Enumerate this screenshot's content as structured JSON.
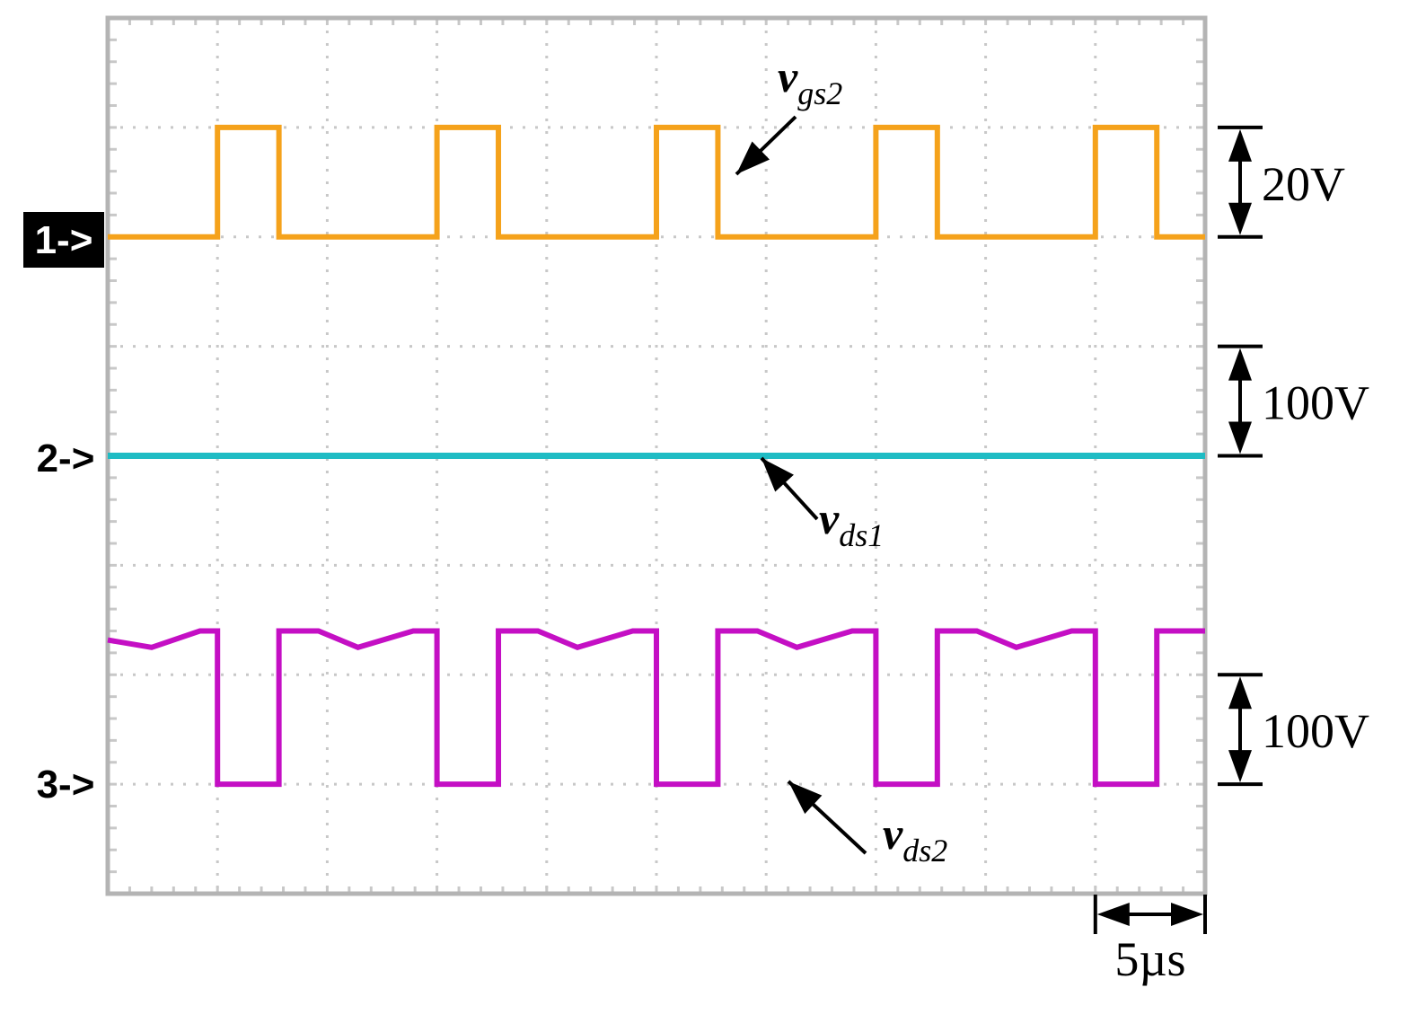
{
  "chart_data": {
    "type": "line",
    "title": "",
    "xlabel": "",
    "ylabel": "",
    "grid": true,
    "grid_divisions": {
      "x": 10,
      "y": 8
    },
    "x_unit": "µs",
    "x_range": [
      0,
      50
    ],
    "y_range_divisions": [
      0,
      8
    ],
    "colors": {
      "ch1": "#f5a21b",
      "ch2": "#1fbcc4",
      "ch3": "#c40fc4",
      "grid": "#c8c8c8",
      "frame": "#b4b4b4"
    },
    "channels": [
      {
        "marker": "1->",
        "ground_div": 6.0
      },
      {
        "marker": "2->",
        "ground_div": 4.0
      },
      {
        "marker": "3->",
        "ground_div": 1.0
      }
    ],
    "series": [
      {
        "name": "v_gs2",
        "label_main": "v",
        "label_sub": "gs2",
        "channel": 1,
        "volts_per_div": 20,
        "low_v": 0,
        "high_v": 20,
        "period_us": 10,
        "pulse_rise_us": [
          5,
          15,
          25,
          35,
          45
        ],
        "pulse_width_us": 2.8
      },
      {
        "name": "v_ds1",
        "label_main": "v",
        "label_sub": "ds1",
        "channel": 2,
        "volts_per_div": 100,
        "level_v": 0
      },
      {
        "name": "v_ds2",
        "label_main": "v",
        "label_sub": "ds2",
        "channel": 3,
        "volts_per_div": 100,
        "low_v": 0,
        "high_v": 140,
        "dip_v": 125,
        "period_us": 10,
        "low_start_us": [
          5,
          15,
          25,
          35,
          45
        ],
        "low_width_us": 2.8
      }
    ],
    "scale_markers": [
      {
        "label": "20V",
        "from_div": 7,
        "to_div": 6
      },
      {
        "label": "100V",
        "from_div": 5,
        "to_div": 4
      },
      {
        "label": "100V",
        "from_div": 2,
        "to_div": 1
      }
    ],
    "time_marker": {
      "label": "5µs",
      "from_us": 45,
      "to_us": 50
    }
  }
}
